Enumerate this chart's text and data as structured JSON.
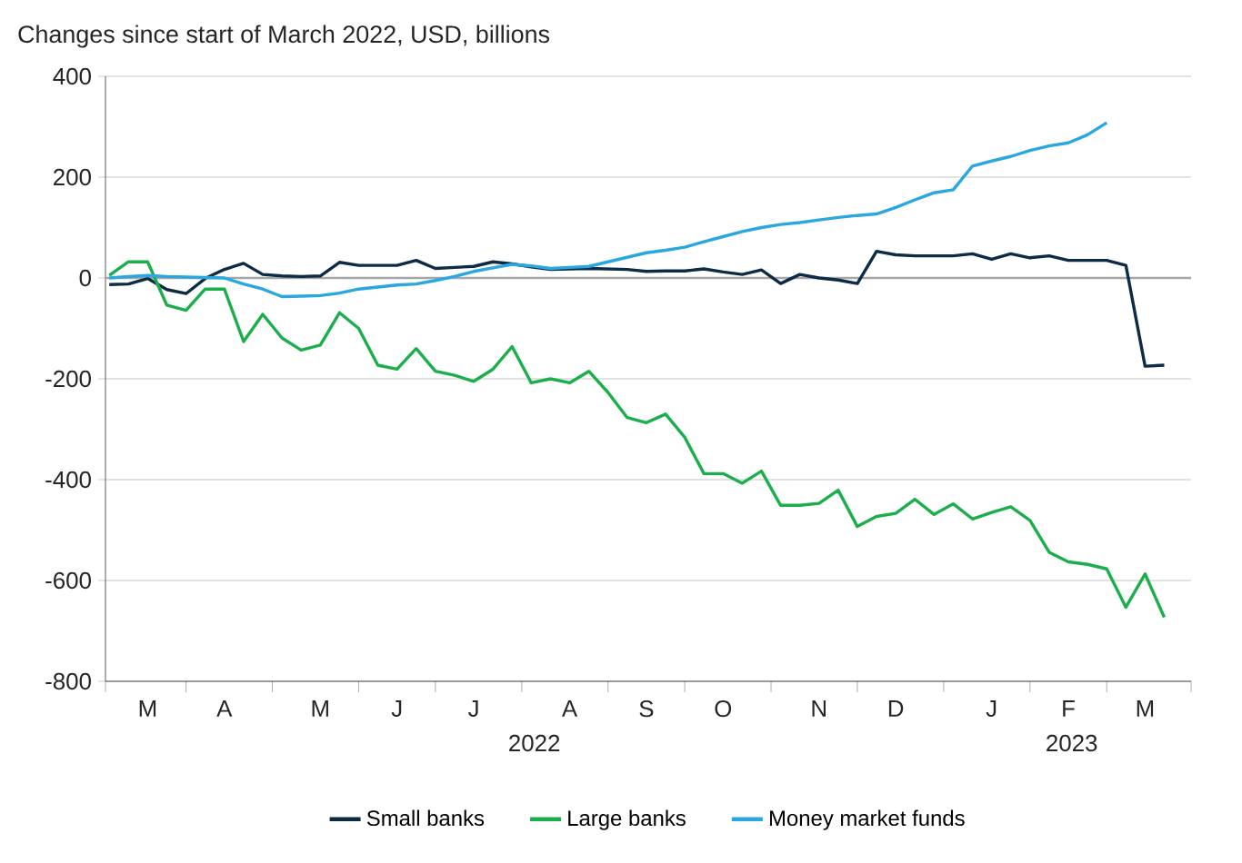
{
  "chart_data": {
    "type": "line",
    "title": "Changes since start of March 2022, USD, billions",
    "categories": [
      null,
      null,
      "M",
      null,
      null,
      null,
      "A",
      null,
      null,
      null,
      null,
      "M",
      null,
      null,
      null,
      "J",
      null,
      null,
      null,
      "J",
      null,
      null,
      null,
      null,
      "A",
      null,
      null,
      null,
      "S",
      null,
      null,
      null,
      "O",
      null,
      null,
      null,
      null,
      "N",
      null,
      null,
      null,
      "D",
      null,
      null,
      null,
      null,
      "J",
      null,
      null,
      null,
      "F",
      null,
      null,
      null,
      "M",
      null
    ],
    "ylim": [
      -800,
      400
    ],
    "yticks": [
      -800,
      -600,
      -400,
      -200,
      0,
      200,
      400
    ],
    "grid": "y",
    "legend": "bottom",
    "annotations": [
      "2022",
      "2023"
    ],
    "ref_lines": [
      {
        "axis": "y",
        "value": 0,
        "color": "#a6a6a6"
      }
    ],
    "series": [
      {
        "name": "Small banks",
        "color": "#0d2b45",
        "values": [
          -13,
          -12,
          -1,
          -23,
          -31,
          -1,
          17,
          29,
          7,
          4,
          3,
          4,
          31,
          25,
          25,
          25,
          35,
          19,
          21,
          23,
          32,
          28,
          22,
          17,
          18,
          19,
          18,
          17,
          13,
          14,
          14,
          18,
          12,
          7,
          16,
          -11,
          7,
          0,
          -4,
          -11,
          53,
          46,
          44,
          44,
          44,
          48,
          37,
          48,
          40,
          44,
          35,
          35,
          35,
          25,
          -175,
          -173
        ]
      },
      {
        "name": "Large banks",
        "color": "#1aaf4b",
        "values": [
          5,
          32,
          32,
          -54,
          -64,
          -22,
          -22,
          -126,
          -72,
          -119,
          -143,
          -133,
          -69,
          -100,
          -173,
          -181,
          -140,
          -185,
          -193,
          -205,
          -181,
          -136,
          -208,
          -200,
          -208,
          -185,
          -227,
          -277,
          -287,
          -270,
          -316,
          -388,
          -388,
          -407,
          -383,
          -451,
          -451,
          -447,
          -421,
          -493,
          -473,
          -467,
          -439,
          -469,
          -448,
          -478,
          -465,
          -454,
          -481,
          -544,
          -563,
          -568,
          -577,
          -653,
          -587,
          -673
        ]
      },
      {
        "name": "Money market funds",
        "color": "#2aa7e0",
        "values": [
          0,
          3,
          5,
          3,
          2,
          1,
          0,
          -12,
          -22,
          -37,
          -36,
          -35,
          -30,
          -22,
          -18,
          -14,
          -12,
          -5,
          3,
          13,
          20,
          27,
          24,
          19,
          21,
          23,
          32,
          41,
          50,
          55,
          61,
          72,
          82,
          92,
          100,
          106,
          110,
          115,
          120,
          124,
          127,
          140,
          155,
          169,
          175,
          222,
          232,
          241,
          253,
          262,
          268,
          284,
          308,
          null,
          null,
          null
        ]
      }
    ]
  }
}
